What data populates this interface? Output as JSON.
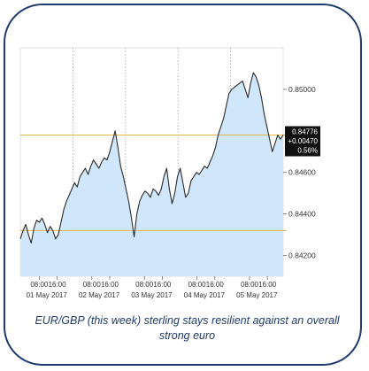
{
  "caption": "EUR/GBP (this week) sterling stays resilient against an overall strong euro",
  "colors": {
    "frame": "#1e3a6e",
    "area_fill": "#cfe6fb",
    "line": "#2b2b2b",
    "reference_line": "#e0b84a",
    "badge": "#111111",
    "caption": "#1f3a6b"
  },
  "chart_data": {
    "type": "area",
    "title": "",
    "xlabel": "",
    "ylabel": "",
    "ylim": [
      0.841,
      0.852
    ],
    "y_axis_side": "right",
    "y_ticks": [
      "0.84200",
      "0.84400",
      "0.84600",
      "0.85000"
    ],
    "x_ticks": [
      {
        "time": "08:00",
        "date": "01 May 2017"
      },
      {
        "time": "16:00",
        "date": ""
      },
      {
        "time": "08:00",
        "date": "02 May 2017"
      },
      {
        "time": "16:00",
        "date": ""
      },
      {
        "time": "08:00",
        "date": "03 May 2017"
      },
      {
        "time": "16:00",
        "date": ""
      },
      {
        "time": "08:00",
        "date": "04 May 2017"
      },
      {
        "time": "16:00",
        "date": ""
      },
      {
        "time": "08:00",
        "date": "05 May 2017"
      },
      {
        "time": "16:00",
        "date": ""
      }
    ],
    "day_separators": [
      "01 May 2017",
      "02 May 2017",
      "03 May 2017",
      "04 May 2017",
      "05 May 2017"
    ],
    "reference_lines": [
      0.8432,
      0.8478
    ],
    "last_value_badge": {
      "value": "0.84776",
      "change": "+0.00470",
      "pct": "0.56%"
    },
    "series": [
      {
        "values": [
          0.8428,
          0.8432,
          0.8435,
          0.843,
          0.8426,
          0.8433,
          0.8437,
          0.8436,
          0.8438,
          0.8435,
          0.8431,
          0.8434,
          0.8432,
          0.8428,
          0.843,
          0.8436,
          0.8442,
          0.8446,
          0.8449,
          0.8452,
          0.8455,
          0.8453,
          0.8458,
          0.846,
          0.8462,
          0.8459,
          0.8463,
          0.8466,
          0.8464,
          0.8462,
          0.8465,
          0.8467,
          0.8466,
          0.847,
          0.8475,
          0.848,
          0.8472,
          0.8463,
          0.8458,
          0.8452,
          0.8446,
          0.8438,
          0.8429,
          0.844,
          0.8446,
          0.8449,
          0.8451,
          0.845,
          0.8448,
          0.8452,
          0.8451,
          0.8449,
          0.8452,
          0.8458,
          0.8462,
          0.8452,
          0.8445,
          0.845,
          0.8458,
          0.8462,
          0.8455,
          0.8448,
          0.845,
          0.8456,
          0.8458,
          0.846,
          0.8459,
          0.8461,
          0.8463,
          0.8462,
          0.8465,
          0.8468,
          0.8472,
          0.8478,
          0.8482,
          0.8486,
          0.8492,
          0.8498,
          0.85,
          0.8501,
          0.8502,
          0.8503,
          0.8504,
          0.85,
          0.8496,
          0.8503,
          0.8508,
          0.8506,
          0.8502,
          0.8496,
          0.8488,
          0.8482,
          0.8476,
          0.847,
          0.8474,
          0.8478,
          0.8476,
          0.8478
        ]
      }
    ]
  }
}
